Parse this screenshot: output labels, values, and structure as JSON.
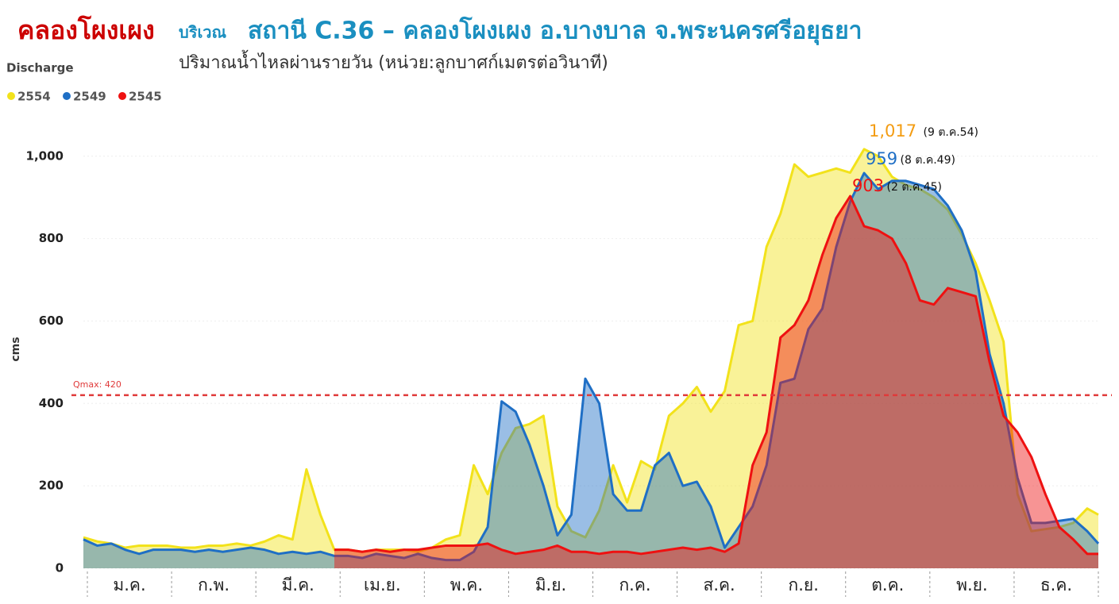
{
  "chart_data": {
    "type": "area",
    "title": "คลองโผงเผง",
    "title_prefix": "บริเวณ",
    "title_station": "สถานี C.36 – คลองโผงเผง อ.บางบาล จ.พระนครศรีอยุธยา",
    "subtitle": "ปริมาณน้ำไหลผ่านรายวัน (หน่วย:ลูกบาศก์เมตรต่อวินาที)",
    "legend_title": "Discharge",
    "ylabel": "cms",
    "categories": [
      "ม.ค.",
      "ก.พ.",
      "มี.ค.",
      "เม.ย.",
      "พ.ค.",
      "มิ.ย.",
      "ก.ค.",
      "ส.ค.",
      "ก.ย.",
      "ต.ค.",
      "พ.ย.",
      "ธ.ค."
    ],
    "x": [
      1,
      6,
      11,
      16,
      21,
      26,
      31,
      36,
      41,
      46,
      51,
      56,
      61,
      66,
      71,
      76,
      81,
      86,
      91,
      96,
      101,
      106,
      111,
      116,
      121,
      126,
      131,
      136,
      141,
      146,
      151,
      156,
      161,
      166,
      171,
      176,
      181,
      186,
      191,
      196,
      201,
      206,
      211,
      216,
      221,
      226,
      231,
      236,
      241,
      246,
      251,
      256,
      261,
      266,
      271,
      276,
      281,
      286,
      291,
      296,
      301,
      306,
      311,
      316,
      321,
      326,
      331,
      336,
      341,
      346,
      351,
      356,
      361,
      365
    ],
    "xlim": [
      1,
      365
    ],
    "ylim": [
      0,
      1040
    ],
    "yticks": [
      0,
      200,
      400,
      600,
      800,
      {
        "value": 1000,
        "label": "1,000"
      }
    ],
    "grid": true,
    "series": [
      {
        "name": "2554",
        "color": "#f2e21b",
        "values": [
          75,
          65,
          60,
          50,
          55,
          55,
          55,
          50,
          50,
          55,
          55,
          60,
          55,
          65,
          80,
          70,
          240,
          130,
          45,
          45,
          40,
          45,
          45,
          45,
          40,
          50,
          70,
          80,
          250,
          180,
          280,
          340,
          350,
          370,
          150,
          90,
          75,
          140,
          250,
          160,
          260,
          240,
          370,
          400,
          440,
          380,
          430,
          590,
          600,
          780,
          860,
          980,
          950,
          960,
          970,
          960,
          1017,
          1000,
          950,
          930,
          920,
          900,
          870,
          810,
          740,
          650,
          550,
          180,
          90,
          95,
          100,
          110,
          145,
          130
        ]
      },
      {
        "name": "2549",
        "color": "#1f6fc5",
        "values": [
          70,
          55,
          60,
          45,
          35,
          45,
          45,
          45,
          40,
          45,
          40,
          45,
          50,
          45,
          35,
          40,
          35,
          40,
          30,
          30,
          25,
          35,
          30,
          25,
          35,
          25,
          20,
          20,
          40,
          100,
          405,
          380,
          300,
          200,
          80,
          130,
          460,
          400,
          180,
          140,
          140,
          250,
          280,
          200,
          210,
          150,
          50,
          100,
          150,
          250,
          450,
          460,
          580,
          630,
          780,
          890,
          959,
          920,
          940,
          940,
          930,
          920,
          880,
          820,
          720,
          520,
          400,
          220,
          110,
          110,
          115,
          120,
          90,
          60
        ]
      },
      {
        "name": "2545",
        "color": "#ee1111",
        "values": [
          null,
          null,
          null,
          null,
          null,
          null,
          null,
          null,
          null,
          null,
          null,
          null,
          null,
          null,
          null,
          null,
          null,
          null,
          45,
          45,
          40,
          45,
          40,
          45,
          45,
          50,
          55,
          55,
          55,
          60,
          45,
          35,
          40,
          45,
          55,
          40,
          40,
          35,
          40,
          40,
          35,
          40,
          45,
          50,
          45,
          50,
          40,
          60,
          250,
          330,
          560,
          590,
          650,
          760,
          850,
          903,
          830,
          820,
          800,
          740,
          650,
          640,
          680,
          670,
          660,
          500,
          370,
          330,
          270,
          180,
          100,
          70,
          35,
          35
        ]
      }
    ],
    "reference_line": {
      "label": "Qmax: 420",
      "value": 420,
      "color": "#e03a3a"
    },
    "annotations": [
      {
        "text": "1,017",
        "date": "(9 ต.ค.54)",
        "value": 1017,
        "color": "#f39c12"
      },
      {
        "text": "959",
        "date": "(8 ต.ค.49)",
        "value": 959,
        "color": "#1f6fc5"
      },
      {
        "text": "903",
        "date": "(2 ต.ค.45)",
        "value": 903,
        "color": "#ee1111"
      }
    ]
  }
}
